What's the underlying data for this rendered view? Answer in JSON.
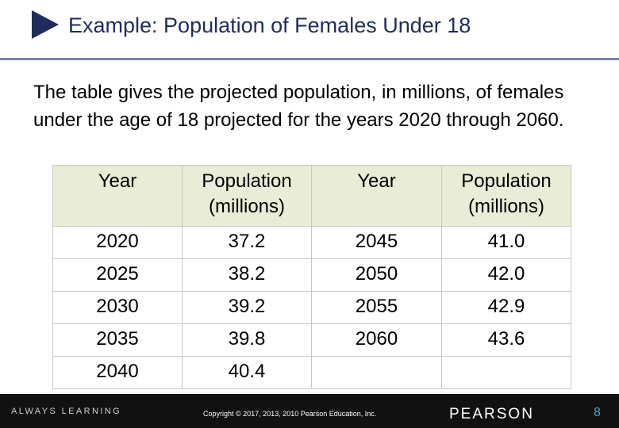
{
  "slide": {
    "title": "Example: Population of Females Under 18",
    "intro": "The table gives the projected population, in millions, of females under the age of 18 projected for the years 2020 through 2060."
  },
  "table": {
    "headers": [
      "Year",
      "Population\n(millions)",
      "Year",
      "Population\n(millions)"
    ],
    "rows": [
      [
        "2020",
        "37.2",
        "2045",
        "41.0"
      ],
      [
        "2025",
        "38.2",
        "2050",
        "42.0"
      ],
      [
        "2030",
        "39.2",
        "2055",
        "42.9"
      ],
      [
        "2035",
        "39.8",
        "2060",
        "43.6"
      ],
      [
        "2040",
        "40.4",
        "",
        ""
      ]
    ]
  },
  "footer": {
    "tagline": "ALWAYS LEARNING",
    "copyright": "Copyright © 2017, 2013, 2010 Pearson Education, Inc.",
    "brand": "PEARSON",
    "page_number": "8"
  },
  "colors": {
    "title": "#1f2d5c",
    "header_fill": "#e9ecd6",
    "footer_bg": "#111111",
    "page_number": "#4a9fd6"
  }
}
